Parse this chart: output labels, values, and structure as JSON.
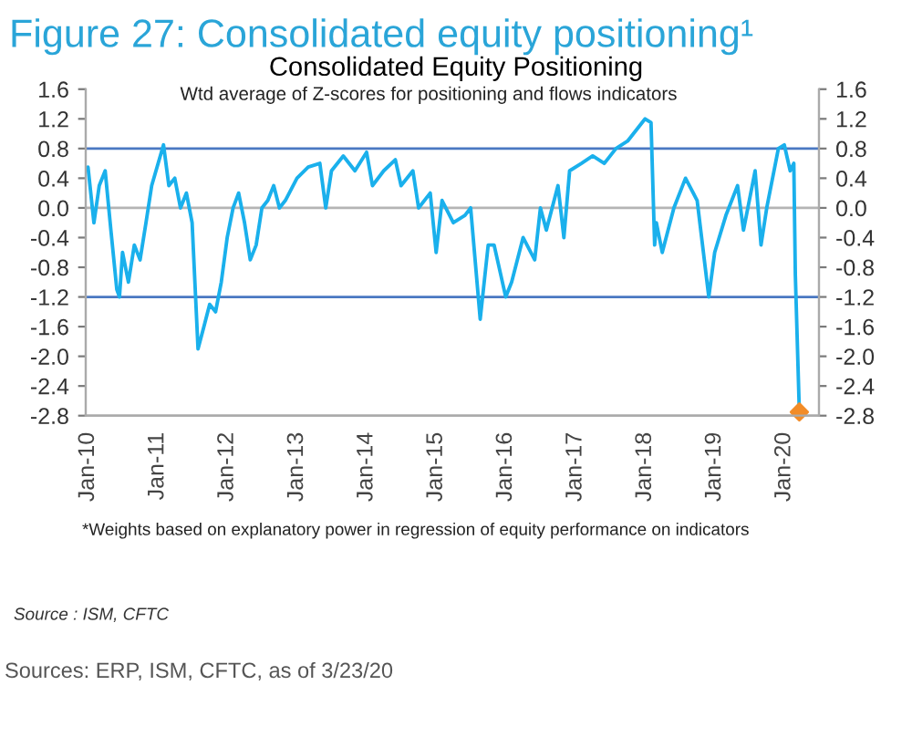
{
  "chart_data": {
    "type": "line",
    "title": "Figure 27: Consolidated equity positioning¹",
    "subtitle": "Consolidated Equity Positioning",
    "annotations": [
      "Wtd average of Z-scores for positioning and flows indicators",
      "*Weights based on explanatory power in regression of equity performance on indicators",
      "Source : ISM, CFTC",
      "Sources: ERP, ISM, CFTC, as of 3/23/20"
    ],
    "xlim": [
      "2009-12-20",
      "2020-07-01"
    ],
    "xticks": [
      {
        "value": "2010-01",
        "label": "Jan-10"
      },
      {
        "value": "2011-01",
        "label": "Jan-11"
      },
      {
        "value": "2012-01",
        "label": "Jan-12"
      },
      {
        "value": "2013-01",
        "label": "Jan-13"
      },
      {
        "value": "2014-01",
        "label": "Jan-14"
      },
      {
        "value": "2015-01",
        "label": "Jan-15"
      },
      {
        "value": "2016-01",
        "label": "Jan-16"
      },
      {
        "value": "2017-01",
        "label": "Jan-17"
      },
      {
        "value": "2018-01",
        "label": "Jan-18"
      },
      {
        "value": "2019-01",
        "label": "Jan-19"
      },
      {
        "value": "2020-01",
        "label": "Jan-20"
      }
    ],
    "ylim": [
      -2.8,
      1.6
    ],
    "yticks": [
      {
        "value": 1.6,
        "label": "1.6"
      },
      {
        "value": 1.2,
        "label": "1.2"
      },
      {
        "value": 0.8,
        "label": "0.8"
      },
      {
        "value": 0.4,
        "label": "0.4"
      },
      {
        "value": 0,
        "label": "0.0"
      },
      {
        "value": -0.4,
        "label": "-0.4"
      },
      {
        "value": -0.8,
        "label": "-0.8"
      },
      {
        "value": -1.2,
        "label": "-1.2"
      },
      {
        "value": -1.6,
        "label": "-1.6"
      },
      {
        "value": -2.0,
        "label": "-2.0"
      },
      {
        "value": -2.4,
        "label": "-2.4"
      },
      {
        "value": -2.8,
        "label": "-2.8"
      }
    ],
    "y2lim": [
      -2.8,
      1.6
    ],
    "y2ticks": [
      {
        "value": 1.6,
        "label": "1.6"
      },
      {
        "value": 1.2,
        "label": "1.2"
      },
      {
        "value": 0.8,
        "label": "0.8"
      },
      {
        "value": 0.4,
        "label": "0.4"
      },
      {
        "value": 0,
        "label": "0.0"
      },
      {
        "value": -0.4,
        "label": "-0.4"
      },
      {
        "value": -0.8,
        "label": "-0.8"
      },
      {
        "value": -1.2,
        "label": "-1.2"
      },
      {
        "value": -1.6,
        "label": "-1.6"
      },
      {
        "value": -2.0,
        "label": "-2.0"
      },
      {
        "value": -2.4,
        "label": "-2.4"
      },
      {
        "value": -2.8,
        "label": "-2.8"
      }
    ],
    "ref_lines": [
      {
        "axis": "y",
        "value": 0.8,
        "color": "#4a78c2"
      },
      {
        "axis": "y",
        "value": 0,
        "color": "#b4b4b4"
      },
      {
        "axis": "y",
        "value": -1.2,
        "color": "#4a78c2"
      }
    ],
    "grid": false,
    "series": [
      {
        "color": "#1ab0ec",
        "x": [
          "2010-01-01",
          "2010-02-01",
          "2010-03-01",
          "2010-04-01",
          "2010-05-01",
          "2010-06-01",
          "2010-06-15",
          "2010-07-01",
          "2010-08-01",
          "2010-09-01",
          "2010-10-01",
          "2010-11-01",
          "2010-12-01",
          "2011-02-01",
          "2011-03-01",
          "2011-04-01",
          "2011-05-01",
          "2011-06-01",
          "2011-07-01",
          "2011-08-01",
          "2011-09-01",
          "2011-10-01",
          "2011-11-01",
          "2011-12-01",
          "2012-01-01",
          "2012-02-01",
          "2012-03-01",
          "2012-04-01",
          "2012-05-01",
          "2012-06-01",
          "2012-07-01",
          "2012-08-01",
          "2012-09-01",
          "2012-10-01",
          "2012-11-01",
          "2013-01-01",
          "2013-03-01",
          "2013-05-01",
          "2013-06-01",
          "2013-07-01",
          "2013-09-01",
          "2013-11-01",
          "2014-01-01",
          "2014-02-01",
          "2014-04-01",
          "2014-06-01",
          "2014-07-01",
          "2014-09-01",
          "2014-10-01",
          "2014-12-01",
          "2015-01-01",
          "2015-02-01",
          "2015-04-01",
          "2015-06-01",
          "2015-07-01",
          "2015-08-20",
          "2015-10-01",
          "2015-11-01",
          "2016-01-01",
          "2016-02-01",
          "2016-04-01",
          "2016-06-01",
          "2016-07-01",
          "2016-08-01",
          "2016-10-01",
          "2016-11-01",
          "2016-12-01",
          "2017-02-01",
          "2017-04-01",
          "2017-06-01",
          "2017-08-01",
          "2017-10-01",
          "2017-12-01",
          "2018-01-01",
          "2018-02-01",
          "2018-02-20",
          "2018-03-01",
          "2018-04-01",
          "2018-06-01",
          "2018-08-01",
          "2018-10-01",
          "2018-12-01",
          "2019-01-01",
          "2019-03-01",
          "2019-05-01",
          "2019-06-01",
          "2019-08-01",
          "2019-09-01",
          "2019-10-01",
          "2019-12-01",
          "2020-01-01",
          "2020-02-01",
          "2020-02-20",
          "2020-02-28",
          "2020-03-20"
        ],
        "values": [
          0.55,
          -0.2,
          0.3,
          0.5,
          -0.3,
          -1.1,
          -1.2,
          -0.6,
          -1.0,
          -0.5,
          -0.7,
          -0.2,
          0.3,
          0.85,
          0.3,
          0.4,
          0.0,
          0.2,
          -0.2,
          -1.9,
          -1.6,
          -1.3,
          -1.4,
          -1.0,
          -0.4,
          0.0,
          0.2,
          -0.2,
          -0.7,
          -0.5,
          0.0,
          0.1,
          0.3,
          0.0,
          0.1,
          0.4,
          0.55,
          0.6,
          0.0,
          0.5,
          0.7,
          0.5,
          0.75,
          0.3,
          0.5,
          0.65,
          0.3,
          0.5,
          0.0,
          0.2,
          -0.6,
          0.1,
          -0.2,
          -0.1,
          0.0,
          -1.5,
          -0.5,
          -0.5,
          -1.2,
          -1.0,
          -0.4,
          -0.7,
          0.0,
          -0.3,
          0.3,
          -0.4,
          0.5,
          0.6,
          0.7,
          0.6,
          0.8,
          0.9,
          1.1,
          1.2,
          1.15,
          -0.5,
          -0.2,
          -0.6,
          0.0,
          0.4,
          0.1,
          -1.2,
          -0.6,
          -0.1,
          0.3,
          -0.3,
          0.5,
          -0.5,
          0.0,
          0.8,
          0.85,
          0.5,
          0.6,
          -0.9,
          -2.75
        ]
      },
      {
        "type": "scatter",
        "color": "#f28c28",
        "marker": "diamond",
        "x": [
          "2020-03-20"
        ],
        "values": [
          -2.75
        ]
      }
    ]
  }
}
